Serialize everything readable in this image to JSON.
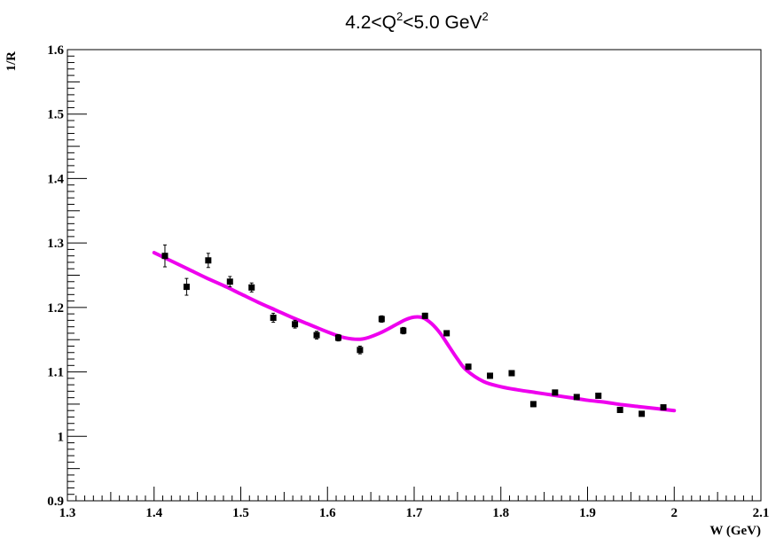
{
  "chart_data": {
    "type": "scatter",
    "title_parts": {
      "prefix": "4.2<Q",
      "sup1": "2",
      "middle": "<5.0 GeV",
      "sup2": "2"
    },
    "xlabel": "W (GeV)",
    "ylabel": "1/R",
    "xlim": [
      1.3,
      2.1
    ],
    "ylim": [
      0.9,
      1.6
    ],
    "x_ticks": [
      "1.3",
      "1.4",
      "1.5",
      "1.6",
      "1.7",
      "1.8",
      "1.9",
      "2",
      "2.1"
    ],
    "y_ticks": [
      "0.9",
      "1",
      "1.1",
      "1.2",
      "1.3",
      "1.4",
      "1.5",
      "1.6"
    ],
    "grid": false,
    "series": [
      {
        "kind": "points",
        "color": "#000000",
        "x": [
          1.4125,
          1.4375,
          1.4625,
          1.4875,
          1.5125,
          1.5375,
          1.5625,
          1.5875,
          1.6125,
          1.6375,
          1.6625,
          1.6875,
          1.7125,
          1.7375,
          1.7625,
          1.7875,
          1.8125,
          1.8375,
          1.8625,
          1.8875,
          1.9125,
          1.9375,
          1.9625,
          1.9875
        ],
        "y": [
          1.28,
          1.232,
          1.273,
          1.24,
          1.231,
          1.184,
          1.174,
          1.157,
          1.153,
          1.134,
          1.182,
          1.164,
          1.187,
          1.16,
          1.108,
          1.094,
          1.098,
          1.05,
          1.068,
          1.061,
          1.063,
          1.041,
          1.035,
          1.045
        ],
        "yerr": [
          0.017,
          0.013,
          0.011,
          0.008,
          0.007,
          0.007,
          0.006,
          0.006,
          0.005,
          0.006,
          0.005,
          0.005,
          0.004,
          0.004,
          0.004,
          0.004,
          0.004,
          0.004,
          0.003,
          0.003,
          0.003,
          0.003,
          0.003,
          0.003
        ]
      },
      {
        "kind": "fit-curve",
        "color": "#ee00ee",
        "x": [
          1.4,
          1.42,
          1.44,
          1.46,
          1.48,
          1.5,
          1.52,
          1.54,
          1.56,
          1.58,
          1.6,
          1.62,
          1.64,
          1.66,
          1.68,
          1.69,
          1.7,
          1.71,
          1.72,
          1.73,
          1.74,
          1.75,
          1.76,
          1.78,
          1.8,
          1.82,
          1.84,
          1.86,
          1.88,
          1.9,
          1.92,
          1.94,
          1.96,
          1.98,
          2.0
        ],
        "y": [
          1.285,
          1.272,
          1.259,
          1.246,
          1.234,
          1.221,
          1.208,
          1.196,
          1.184,
          1.173,
          1.162,
          1.153,
          1.151,
          1.16,
          1.174,
          1.181,
          1.185,
          1.184,
          1.175,
          1.16,
          1.14,
          1.12,
          1.103,
          1.085,
          1.077,
          1.072,
          1.068,
          1.064,
          1.06,
          1.056,
          1.053,
          1.049,
          1.046,
          1.043,
          1.04
        ]
      }
    ]
  }
}
